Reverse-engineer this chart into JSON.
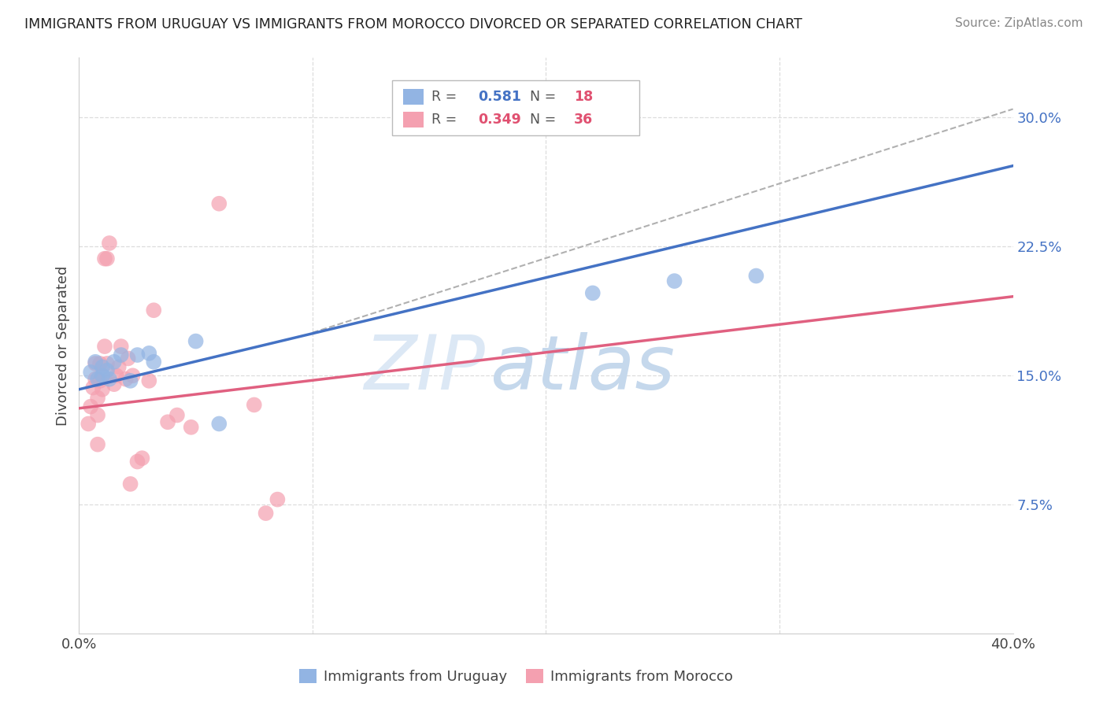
{
  "title": "IMMIGRANTS FROM URUGUAY VS IMMIGRANTS FROM MOROCCO DIVORCED OR SEPARATED CORRELATION CHART",
  "source": "Source: ZipAtlas.com",
  "ylabel": "Divorced or Separated",
  "xlim": [
    0.0,
    0.4
  ],
  "ylim": [
    0.0,
    0.335
  ],
  "xticks": [
    0.0,
    0.1,
    0.2,
    0.3,
    0.4
  ],
  "yticks": [
    0.075,
    0.15,
    0.225,
    0.3
  ],
  "ytick_labels": [
    "7.5%",
    "15.0%",
    "22.5%",
    "30.0%"
  ],
  "xtick_labels": [
    "0.0%",
    "",
    "",
    "",
    "40.0%"
  ],
  "uruguay_color": "#92b4e3",
  "morocco_color": "#f4a0b0",
  "uruguay_line_color": "#4472c4",
  "morocco_line_color": "#e06080",
  "uruguay_R": "0.581",
  "uruguay_N": "18",
  "morocco_R": "0.349",
  "morocco_N": "36",
  "uruguay_line": [
    0.0,
    0.142,
    0.4,
    0.272
  ],
  "morocco_line": [
    0.0,
    0.131,
    0.4,
    0.196
  ],
  "dash_line": [
    0.1,
    0.175,
    0.4,
    0.305
  ],
  "uruguay_points": [
    [
      0.005,
      0.152
    ],
    [
      0.007,
      0.158
    ],
    [
      0.008,
      0.148
    ],
    [
      0.01,
      0.15
    ],
    [
      0.01,
      0.155
    ],
    [
      0.012,
      0.153
    ],
    [
      0.013,
      0.148
    ],
    [
      0.015,
      0.158
    ],
    [
      0.018,
      0.162
    ],
    [
      0.022,
      0.147
    ],
    [
      0.025,
      0.162
    ],
    [
      0.03,
      0.163
    ],
    [
      0.032,
      0.158
    ],
    [
      0.05,
      0.17
    ],
    [
      0.06,
      0.122
    ],
    [
      0.22,
      0.198
    ],
    [
      0.255,
      0.205
    ],
    [
      0.29,
      0.208
    ]
  ],
  "morocco_points": [
    [
      0.004,
      0.122
    ],
    [
      0.005,
      0.132
    ],
    [
      0.006,
      0.143
    ],
    [
      0.007,
      0.148
    ],
    [
      0.007,
      0.157
    ],
    [
      0.008,
      0.11
    ],
    [
      0.008,
      0.127
    ],
    [
      0.008,
      0.137
    ],
    [
      0.009,
      0.147
    ],
    [
      0.009,
      0.157
    ],
    [
      0.01,
      0.142
    ],
    [
      0.01,
      0.15
    ],
    [
      0.011,
      0.167
    ],
    [
      0.011,
      0.218
    ],
    [
      0.012,
      0.157
    ],
    [
      0.012,
      0.218
    ],
    [
      0.013,
      0.227
    ],
    [
      0.015,
      0.145
    ],
    [
      0.016,
      0.15
    ],
    [
      0.017,
      0.155
    ],
    [
      0.018,
      0.167
    ],
    [
      0.02,
      0.148
    ],
    [
      0.021,
      0.16
    ],
    [
      0.022,
      0.087
    ],
    [
      0.023,
      0.15
    ],
    [
      0.025,
      0.1
    ],
    [
      0.027,
      0.102
    ],
    [
      0.03,
      0.147
    ],
    [
      0.032,
      0.188
    ],
    [
      0.038,
      0.123
    ],
    [
      0.042,
      0.127
    ],
    [
      0.048,
      0.12
    ],
    [
      0.06,
      0.25
    ],
    [
      0.075,
      0.133
    ],
    [
      0.08,
      0.07
    ],
    [
      0.085,
      0.078
    ]
  ],
  "bg_color": "#ffffff",
  "grid_color": "#dddddd"
}
